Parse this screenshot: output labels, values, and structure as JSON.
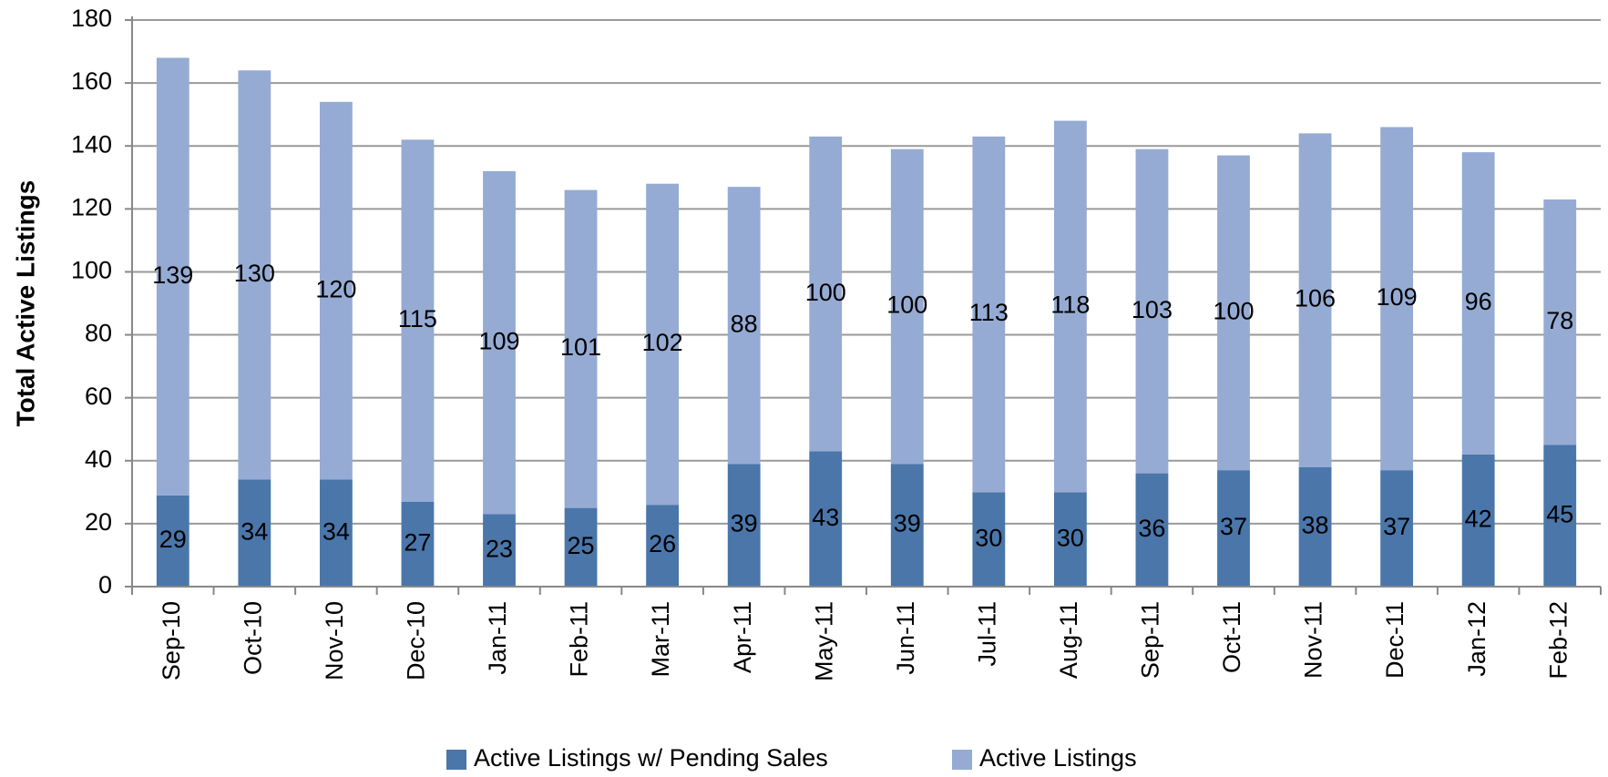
{
  "chart_data": {
    "type": "stacked_bar",
    "y_label": "Total  Active Listings",
    "categories": [
      "Sep-10",
      "Oct-10",
      "Nov-10",
      "Dec-10",
      "Jan-11",
      "Feb-11",
      "Mar-11",
      "Apr-11",
      "May-11",
      "Jun-11",
      "Jul-11",
      "Aug-11",
      "Sep-11",
      "Oct-11",
      "Nov-11",
      "Dec-11",
      "Jan-12",
      "Feb-12"
    ],
    "series": [
      {
        "name": "Active Listings w/ Pending Sales",
        "color": "#4a76aa",
        "values": [
          29,
          34,
          34,
          27,
          23,
          25,
          26,
          39,
          43,
          39,
          30,
          30,
          36,
          37,
          38,
          37,
          42,
          45
        ]
      },
      {
        "name": "Active Listings",
        "color": "#95abd3",
        "values": [
          139,
          130,
          120,
          115,
          109,
          101,
          102,
          88,
          100,
          100,
          113,
          118,
          103,
          100,
          106,
          109,
          96,
          78
        ]
      }
    ],
    "ylim": [
      0,
      180
    ],
    "yticks": [
      0,
      20,
      40,
      60,
      80,
      100,
      120,
      140,
      160,
      180
    ],
    "grid": true,
    "legend": "bottom"
  }
}
